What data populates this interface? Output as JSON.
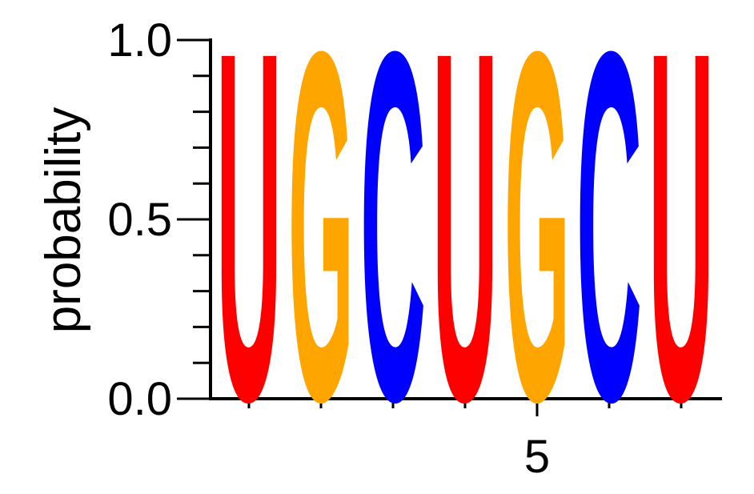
{
  "chart_data": {
    "type": "sequence-logo",
    "ylabel": "probability",
    "ylim": [
      0,
      1.0
    ],
    "yticks": [
      {
        "value": 0.0,
        "label": "0.0"
      },
      {
        "value": 0.5,
        "label": "0.5"
      },
      {
        "value": 1.0,
        "label": "1.0"
      }
    ],
    "y_minor_step": 0.1,
    "x_positions": [
      1,
      2,
      3,
      4,
      5,
      6,
      7
    ],
    "xticks": [
      {
        "value": 5,
        "label": "5"
      }
    ],
    "sequence": [
      {
        "position": 1,
        "letter": "U",
        "probability": 1.0
      },
      {
        "position": 2,
        "letter": "G",
        "probability": 1.0
      },
      {
        "position": 3,
        "letter": "C",
        "probability": 1.0
      },
      {
        "position": 4,
        "letter": "U",
        "probability": 1.0
      },
      {
        "position": 5,
        "letter": "G",
        "probability": 1.0
      },
      {
        "position": 6,
        "letter": "C",
        "probability": 1.0
      },
      {
        "position": 7,
        "letter": "U",
        "probability": 1.0
      }
    ],
    "letter_colors": {
      "U": "#ff0000",
      "G": "#ffa500",
      "C": "#0000ff",
      "A": "#00cc00"
    }
  }
}
